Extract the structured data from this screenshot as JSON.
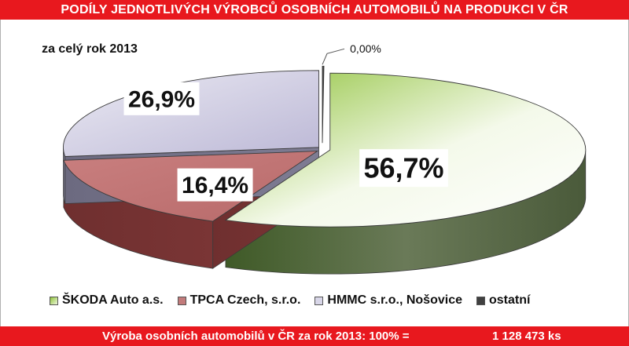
{
  "header": {
    "title": "PODÍLY JEDNOTLIVÝCH VÝROBCŮ OSOBNÍCH AUTOMOBILŮ NA PRODUKCI V ČR"
  },
  "subtitle": "za celý rok 2013",
  "footer": {
    "text": "Výroba osobních automobilů v ČR za rok 2013: 100% =",
    "total": "1 128 473 ks"
  },
  "colors": {
    "banner": "#e8181e"
  },
  "chart_data": {
    "type": "pie",
    "style": "3d-exploded",
    "legend_position": "bottom",
    "slices": [
      {
        "name": "ŠKODA Auto a.s.",
        "value": 56.7,
        "label": "56,7%",
        "color": "#a6d45a"
      },
      {
        "name": "TPCA Czech, s.r.o.",
        "value": 16.4,
        "label": "16,4%",
        "color": "#c27b7b"
      },
      {
        "name": "HMMC s.r.o., Nošovice",
        "value": 26.9,
        "label": "26,9%",
        "color": "#c5c2dc"
      },
      {
        "name": "ostatní",
        "value": 0.0,
        "label": "0,00%",
        "color": "#404040"
      }
    ]
  }
}
